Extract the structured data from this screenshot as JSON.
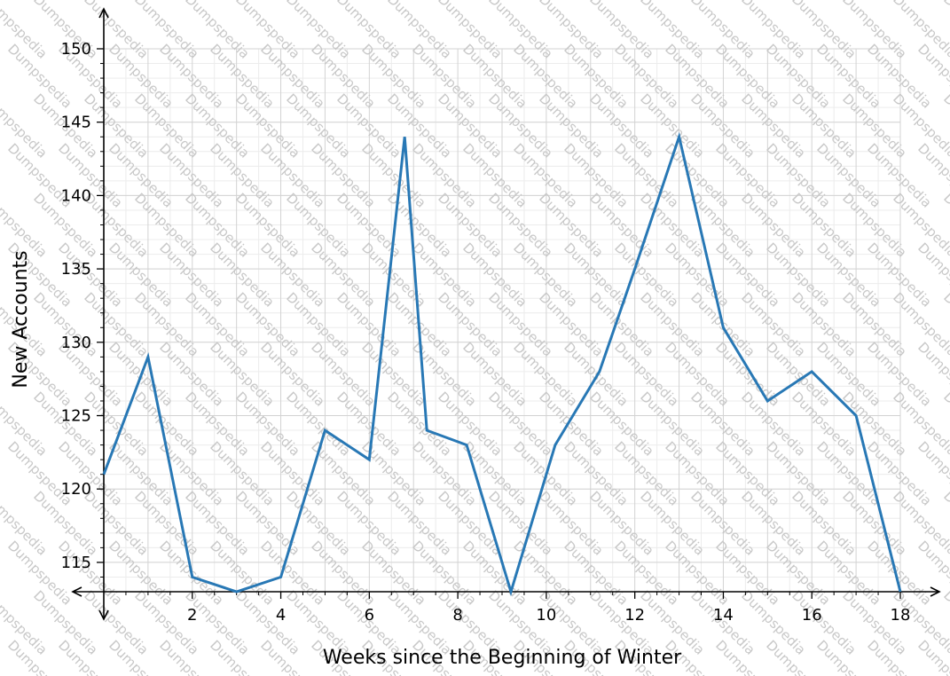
{
  "chart_data": {
    "type": "line",
    "xlabel": "Weeks since the Beginning of Winter",
    "ylabel": "New Accounts",
    "xlim": [
      0,
      18
    ],
    "ylim": [
      113,
      150
    ],
    "x_ticks": [
      2,
      4,
      6,
      8,
      10,
      12,
      14,
      16,
      18
    ],
    "y_ticks": [
      115,
      120,
      125,
      130,
      135,
      140,
      145,
      150
    ],
    "grid": true,
    "line_color": "#2878b5",
    "series": [
      {
        "x": [
          0,
          1,
          2,
          3,
          4,
          5,
          6,
          6.8,
          7.3,
          8.2,
          9.2,
          10.2,
          11.2,
          12,
          13,
          14,
          15,
          16,
          17,
          18
        ],
        "y": [
          121,
          129,
          114,
          113,
          114,
          124,
          122,
          144,
          124,
          123,
          113,
          123,
          128,
          135,
          144,
          131,
          126,
          128,
          125,
          113
        ]
      }
    ]
  },
  "watermark": "Dumpspedia"
}
